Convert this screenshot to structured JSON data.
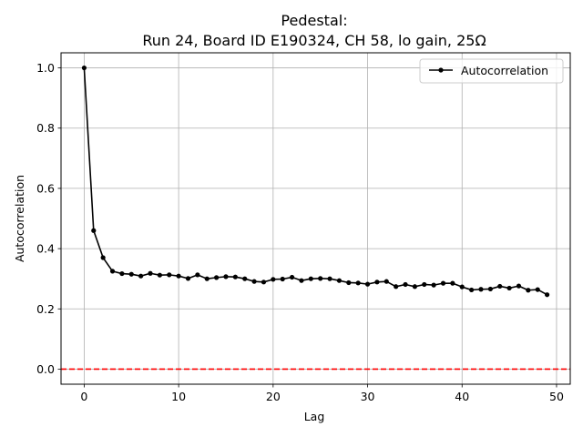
{
  "chart_data": {
    "type": "line",
    "title_line1": "Pedestal:",
    "title_line2": "Run 24, Board ID E190324, CH 58, lo gain, 25Ω",
    "xlabel": "Lag",
    "ylabel": "Autocorrelation",
    "xlim": [
      -2.45,
      51.45
    ],
    "ylim": [
      -0.05,
      1.05
    ],
    "xticks": [
      0,
      10,
      20,
      30,
      40,
      50
    ],
    "yticks": [
      0.0,
      0.2,
      0.4,
      0.6,
      0.8,
      1.0
    ],
    "xtick_labels": [
      "0",
      "10",
      "20",
      "30",
      "40",
      "50"
    ],
    "ytick_labels": [
      "0.0",
      "0.2",
      "0.4",
      "0.6",
      "0.8",
      "1.0"
    ],
    "grid": true,
    "legend_position": "top-right",
    "reference_line": {
      "y": 0.0,
      "color": "#ff0000",
      "style": "dashed"
    },
    "series": [
      {
        "name": "Autocorrelation",
        "color": "#000000",
        "marker": "dot",
        "x": [
          0,
          1,
          2,
          3,
          4,
          5,
          6,
          7,
          8,
          9,
          10,
          11,
          12,
          13,
          14,
          15,
          16,
          17,
          18,
          19,
          20,
          21,
          22,
          23,
          24,
          25,
          26,
          27,
          28,
          29,
          30,
          31,
          32,
          33,
          34,
          35,
          36,
          37,
          38,
          39,
          40,
          41,
          42,
          43,
          44,
          45,
          46,
          47,
          48,
          49
        ],
        "values": [
          1.0,
          0.46,
          0.37,
          0.325,
          0.317,
          0.315,
          0.309,
          0.318,
          0.312,
          0.313,
          0.309,
          0.301,
          0.313,
          0.3,
          0.304,
          0.307,
          0.306,
          0.3,
          0.291,
          0.289,
          0.298,
          0.299,
          0.305,
          0.294,
          0.3,
          0.301,
          0.3,
          0.294,
          0.287,
          0.286,
          0.282,
          0.289,
          0.291,
          0.274,
          0.281,
          0.274,
          0.281,
          0.279,
          0.285,
          0.285,
          0.273,
          0.263,
          0.265,
          0.266,
          0.275,
          0.269,
          0.276,
          0.262,
          0.264,
          0.247
        ]
      }
    ]
  }
}
